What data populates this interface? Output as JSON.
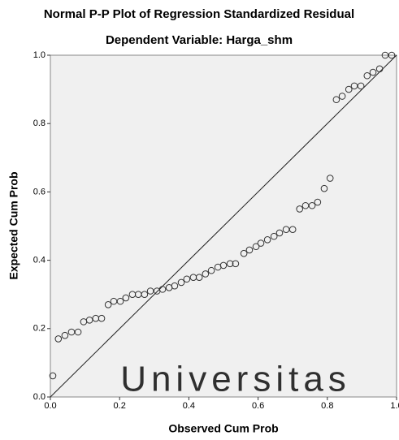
{
  "chart_data": {
    "type": "scatter",
    "title": "Normal P-P Plot of Regression Standardized Residual",
    "subtitle": "Dependent Variable: Harga_shm",
    "x_label": "Observed Cum Prob",
    "y_label": "Expected Cum Prob",
    "watermark": "Universitas",
    "xlim": [
      0,
      1
    ],
    "ylim": [
      0,
      1
    ],
    "xticks": [
      {
        "value": 0,
        "label": "0.0"
      },
      0.2,
      0.4,
      0.6,
      0.8,
      {
        "value": 1,
        "label": "1.0"
      }
    ],
    "yticks": [
      {
        "value": 0,
        "label": "0.0"
      },
      0.2,
      0.4,
      0.6,
      0.8,
      {
        "value": 1,
        "label": "1.0"
      }
    ],
    "color": "#333333",
    "x": [
      0.007,
      0.023,
      0.042,
      0.061,
      0.08,
      0.096,
      0.113,
      0.131,
      0.148,
      0.167,
      0.183,
      0.202,
      0.218,
      0.237,
      0.254,
      0.272,
      0.289,
      0.308,
      0.324,
      0.343,
      0.359,
      0.378,
      0.394,
      0.413,
      0.43,
      0.448,
      0.465,
      0.484,
      0.5,
      0.519,
      0.535,
      0.559,
      0.575,
      0.594,
      0.608,
      0.627,
      0.646,
      0.662,
      0.681,
      0.7,
      0.72,
      0.737,
      0.756,
      0.772,
      0.791,
      0.808,
      0.826,
      0.843,
      0.862,
      0.878,
      0.897,
      0.915,
      0.932,
      0.951,
      0.967,
      0.986
    ],
    "values": [
      0.062,
      0.17,
      0.18,
      0.19,
      0.19,
      0.22,
      0.225,
      0.23,
      0.23,
      0.27,
      0.28,
      0.28,
      0.29,
      0.3,
      0.3,
      0.3,
      0.31,
      0.31,
      0.315,
      0.32,
      0.325,
      0.335,
      0.345,
      0.35,
      0.35,
      0.36,
      0.37,
      0.38,
      0.385,
      0.39,
      0.39,
      0.42,
      0.43,
      0.44,
      0.45,
      0.46,
      0.47,
      0.48,
      0.49,
      0.49,
      0.55,
      0.56,
      0.56,
      0.57,
      0.61,
      0.64,
      0.87,
      0.88,
      0.9,
      0.91,
      0.91,
      0.94,
      0.95,
      0.96,
      1.0,
      1.0
    ]
  }
}
